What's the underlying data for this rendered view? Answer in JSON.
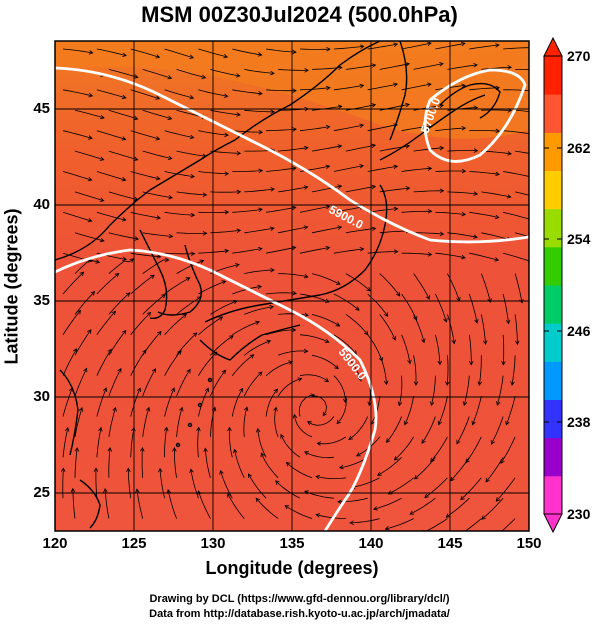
{
  "title": "MSM 00Z30Jul2024 (500.0hPa)",
  "map": {
    "xlabel": "Longitude (degrees)",
    "ylabel": "Latitude  (degrees)",
    "xlim": [
      120,
      150
    ],
    "ylim": [
      22.5,
      48
    ],
    "x_ticks": [
      "120",
      "125",
      "130",
      "135",
      "140",
      "145",
      "150"
    ],
    "y_ticks": [
      "25",
      "30",
      "35",
      "40",
      "45"
    ],
    "contour_labels": [
      "5900.0",
      "5900.0",
      "5700.0"
    ],
    "colors": {
      "field_warm": "#f0523c",
      "field_north": "#f07a1e",
      "contour": "#ffffff",
      "streamline": "#000000"
    }
  },
  "colorbar": {
    "ticks": [
      "270",
      "262",
      "254",
      "246",
      "238",
      "230"
    ],
    "range": [
      230,
      270
    ],
    "colors": [
      "#ff33cc",
      "#9900cc",
      "#3333ff",
      "#0099ff",
      "#00cccc",
      "#00cc66",
      "#33cc00",
      "#99dd00",
      "#ffcc00",
      "#ff9900",
      "#ff5533",
      "#ff2200"
    ]
  },
  "credits": {
    "line1": "Drawing by DCL (https://www.gfd-dennou.org/library/dcl/)",
    "line2": "Data from http://database.rish.kyoto-u.ac.jp/arch/jmadata/"
  }
}
